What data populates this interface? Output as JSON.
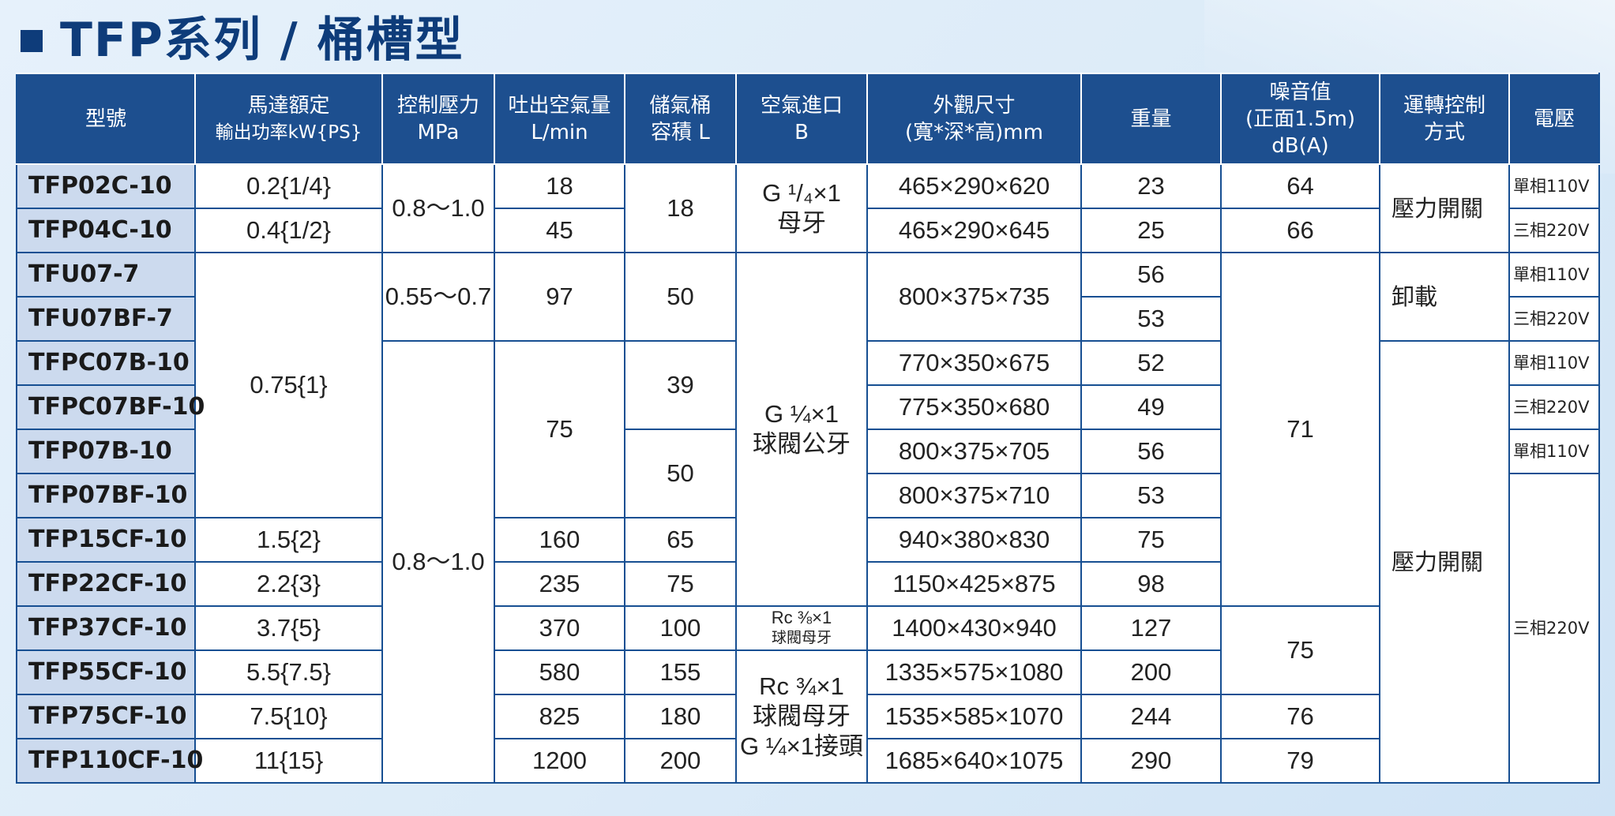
{
  "title": "TFP系列 / 桶槽型",
  "headers": {
    "model": "型號",
    "power_1": "馬達額定",
    "power_2": "輸出功率kW{PS}",
    "pressure_1": "控制壓力",
    "pressure_2": "MPa",
    "flow_1": "吐出空氣量",
    "flow_2": "L/min",
    "tank_1": "儲氣桶",
    "tank_2": "容積 L",
    "inlet_1": "空氣進口",
    "inlet_2": "B",
    "dims_1": "外觀尺寸",
    "dims_2": "(寬*深*高)mm",
    "weight": "重量",
    "noise_1": "噪音值",
    "noise_2": "(正面1.5m)",
    "noise_3": "dB(A)",
    "control_1": "運轉控制",
    "control_2": "方式",
    "voltage": "電壓"
  },
  "models": [
    "TFP02C-10",
    "TFP04C-10",
    "TFU07-7",
    "TFU07BF-7",
    "TFPC07B-10",
    "TFPC07BF-10",
    "TFP07B-10",
    "TFP07BF-10",
    "TFP15CF-10",
    "TFP22CF-10",
    "TFP37CF-10",
    "TFP55CF-10",
    "TFP75CF-10",
    "TFP110CF-10"
  ],
  "power": [
    "0.2{1/4}",
    "0.4{1/2}",
    "0.75{1}",
    "1.5{2}",
    "2.2{3}",
    "3.7{5}",
    "5.5{7.5}",
    "7.5{10}",
    "11{15}"
  ],
  "pressure": [
    "0.8～1.0",
    "0.55～0.7",
    "0.8～1.0"
  ],
  "flow": [
    "18",
    "45",
    "97",
    "75",
    "160",
    "235",
    "370",
    "580",
    "825",
    "1200"
  ],
  "tank": [
    "18",
    "50",
    "39",
    "50",
    "65",
    "75",
    "100",
    "155",
    "180",
    "200"
  ],
  "inlet": {
    "a_line1": "G ¹/₄×1",
    "a_line2": "母牙",
    "b_line1": "G ¼×1",
    "b_line2": "球閥公牙",
    "c_line1": "Rc ⅜×1",
    "c_line2": "球閥母牙",
    "d_line1": "Rc ¾×1",
    "d_line2": "球閥母牙",
    "d_line3": "G ¼×1接頭"
  },
  "dims": [
    "465×290×620",
    "465×290×645",
    "800×375×735",
    "770×350×675",
    "775×350×680",
    "800×375×705",
    "800×375×710",
    "940×380×830",
    "1150×425×875",
    "1400×430×940",
    "1335×575×1080",
    "1535×585×1070",
    "1685×640×1075"
  ],
  "weight": [
    "23",
    "25",
    "56",
    "53",
    "52",
    "49",
    "56",
    "53",
    "75",
    "98",
    "127",
    "200",
    "244",
    "290"
  ],
  "noise": [
    "64",
    "66",
    "71",
    "75",
    "76",
    "79"
  ],
  "control": [
    "壓力開關",
    "卸載",
    "壓力開關"
  ],
  "voltage": [
    "單相110V",
    "三相220V",
    "單相110V",
    "三相220V",
    "單相110V",
    "三相220V",
    "單相110V",
    "三相220V"
  ]
}
